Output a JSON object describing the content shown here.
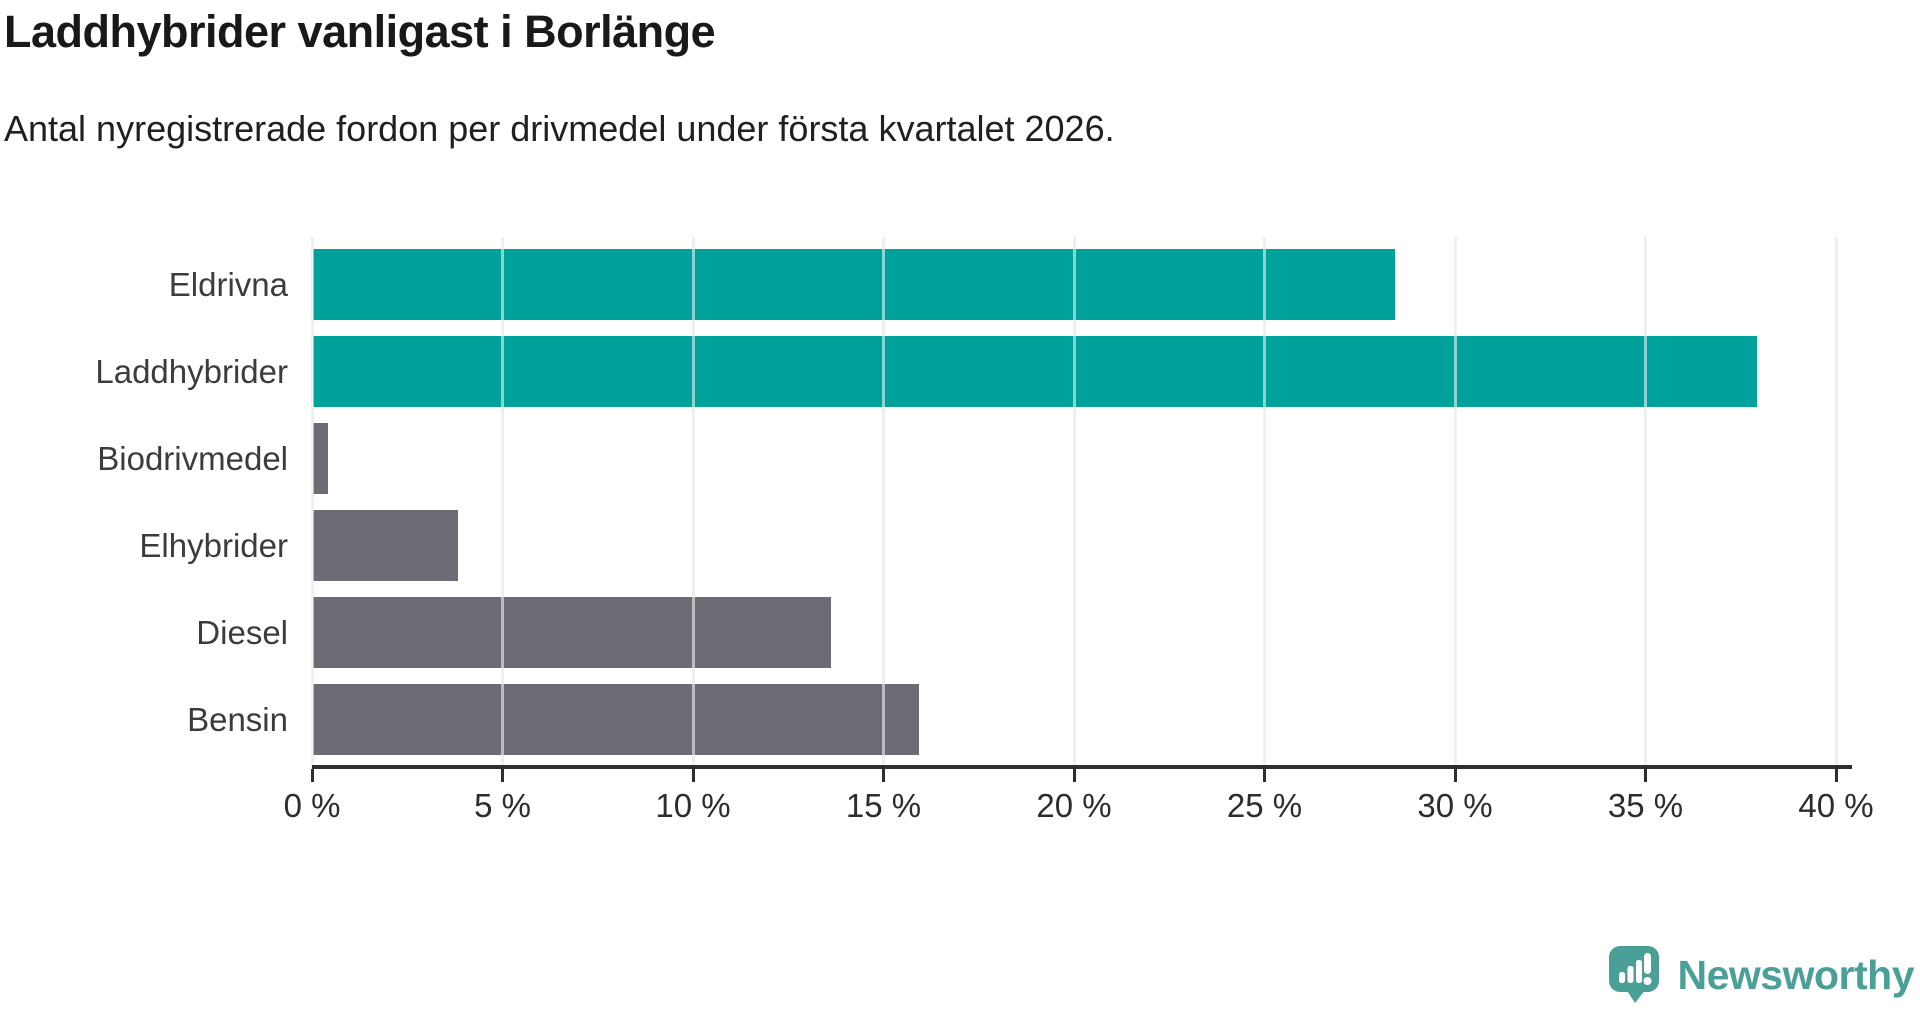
{
  "header": {
    "title": "Laddhybrider vanligast i Borlänge",
    "subtitle": "Antal nyregistrerade fordon per drivmedel under första kvartalet 2026."
  },
  "chart_data": {
    "type": "bar",
    "orientation": "horizontal",
    "title": "Laddhybrider vanligast i Borlänge",
    "subtitle": "Antal nyregistrerade fordon per drivmedel under första kvartalet 2026.",
    "categories": [
      "Eldrivna",
      "Laddhybrider",
      "Biodrivmedel",
      "Elhybrider",
      "Diesel",
      "Bensin"
    ],
    "values": [
      28.4,
      37.9,
      0.4,
      3.8,
      13.6,
      15.9
    ],
    "unit": "%",
    "highlighted": [
      true,
      true,
      false,
      false,
      false,
      false
    ],
    "colors": {
      "highlight": "#00a19a",
      "default": "#6c6c74"
    },
    "xlim": [
      0,
      40
    ],
    "x_ticks": [
      0,
      5,
      10,
      15,
      20,
      25,
      30,
      35,
      40
    ],
    "x_tick_labels": [
      "0 %",
      "5 %",
      "10 %",
      "15 %",
      "20 %",
      "25 %",
      "30 %",
      "35 %",
      "40 %"
    ],
    "grid": true,
    "legend": "none",
    "xlabel": "",
    "ylabel": ""
  },
  "footer": {
    "brand": "Newsworthy",
    "brand_color": "#4aa096"
  }
}
